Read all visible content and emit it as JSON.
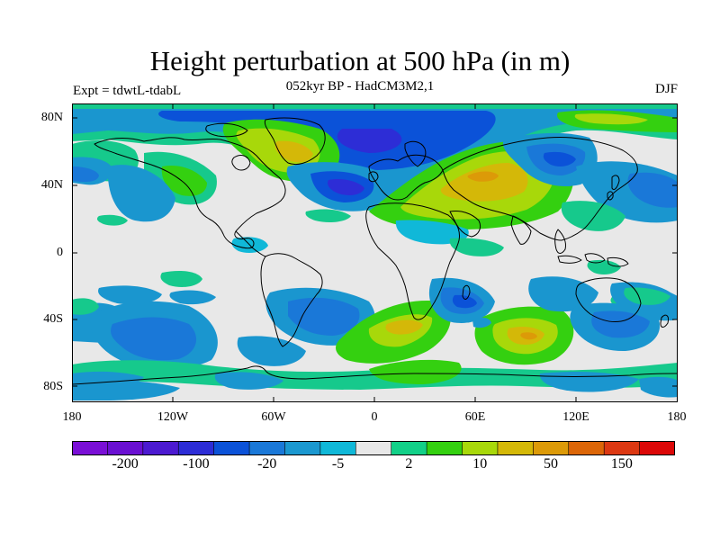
{
  "title": "Height perturbation at 500 hPa (in m)",
  "subtitle": "052kyr BP - HadCM3M2,1",
  "left_label": "Expt = tdwtL-tdabL",
  "right_label": "DJF",
  "lat_ticks": [
    "80N",
    "40N",
    "0",
    "40S",
    "80S"
  ],
  "lon_ticks": [
    "180",
    "120W",
    "60W",
    "0",
    "60E",
    "120E",
    "180"
  ],
  "colorbar": {
    "colors": [
      "#7a0fd6",
      "#6a10d2",
      "#4c1ad1",
      "#2d2dd6",
      "#0b52d8",
      "#1a78d8",
      "#1b98d0",
      "#10b8d8",
      "#e8e8e8",
      "#12d088",
      "#34d010",
      "#a8d80a",
      "#d4b808",
      "#dc9a08",
      "#dc6608",
      "#dc3812",
      "#dc0808"
    ],
    "labels": [
      "-200",
      "-100",
      "-20",
      "-5",
      "2",
      "10",
      "50",
      "150"
    ]
  }
}
